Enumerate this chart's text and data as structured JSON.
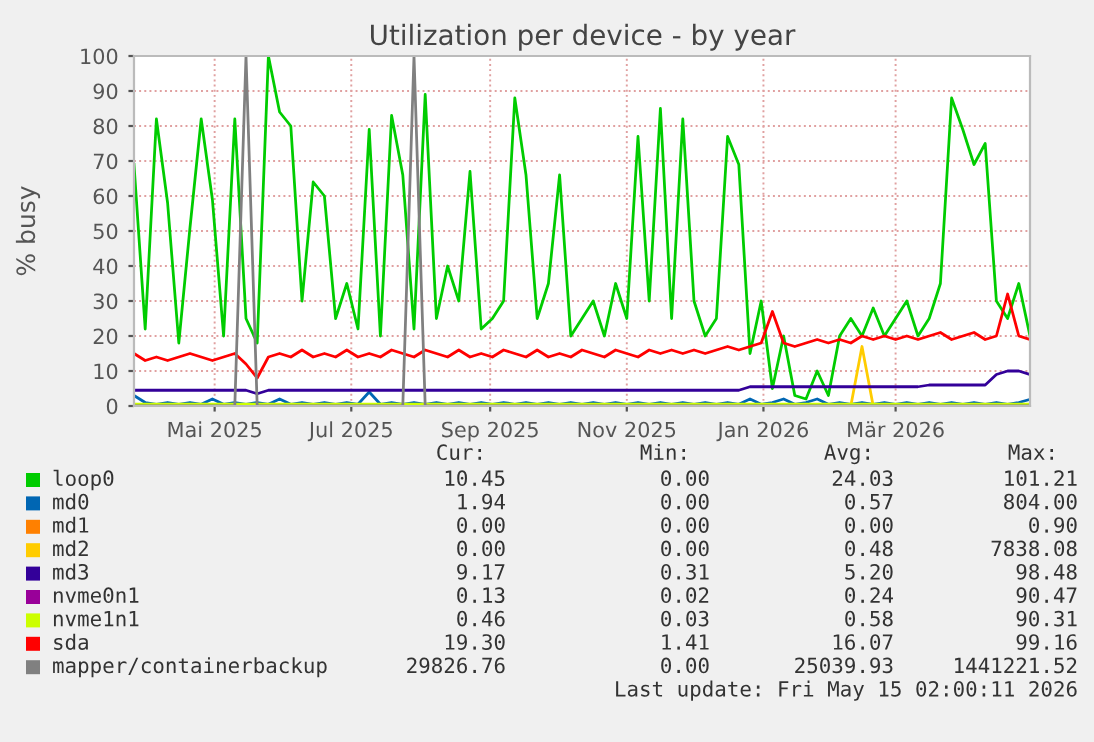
{
  "chart_data": {
    "type": "line",
    "title": "Utilization per device - by year",
    "ylabel": "% busy",
    "x": [
      "2025-04-10",
      "2025-04-15",
      "2025-04-20",
      "2025-04-25",
      "2025-04-30",
      "2025-05-05",
      "2025-05-10",
      "2025-05-15",
      "2025-05-20",
      "2025-05-25",
      "2025-05-30",
      "2025-06-04",
      "2025-06-09",
      "2025-06-14",
      "2025-06-19",
      "2025-06-24",
      "2025-06-29",
      "2025-07-04",
      "2025-07-09",
      "2025-07-14",
      "2025-07-19",
      "2025-07-24",
      "2025-07-29",
      "2025-08-03",
      "2025-08-08",
      "2025-08-13",
      "2025-08-18",
      "2025-08-23",
      "2025-08-28",
      "2025-09-02",
      "2025-09-07",
      "2025-09-12",
      "2025-09-17",
      "2025-09-22",
      "2025-09-27",
      "2025-10-02",
      "2025-10-07",
      "2025-10-12",
      "2025-10-17",
      "2025-10-22",
      "2025-10-27",
      "2025-11-01",
      "2025-11-06",
      "2025-11-11",
      "2025-11-16",
      "2025-11-21",
      "2025-11-26",
      "2025-12-01",
      "2025-12-06",
      "2025-12-11",
      "2025-12-16",
      "2025-12-21",
      "2025-12-26",
      "2025-12-31",
      "2026-01-05",
      "2026-01-10",
      "2026-01-15",
      "2026-01-20",
      "2026-01-25",
      "2026-01-30",
      "2026-02-04",
      "2026-02-09",
      "2026-02-14",
      "2026-02-19",
      "2026-02-24",
      "2026-03-01",
      "2026-03-06",
      "2026-03-11",
      "2026-03-16",
      "2026-03-21",
      "2026-03-26",
      "2026-03-31",
      "2026-04-05",
      "2026-04-10",
      "2026-04-15",
      "2026-04-20",
      "2026-04-25",
      "2026-04-30",
      "2026-05-05",
      "2026-05-10",
      "2026-05-15"
    ],
    "series": [
      {
        "name": "loop0",
        "color": "#00cc00",
        "values": [
          69,
          22,
          82,
          58,
          18,
          51,
          82,
          59,
          20,
          82,
          25,
          18,
          100,
          84,
          80,
          30,
          64,
          60,
          25,
          35,
          22,
          79,
          20,
          83,
          66,
          22,
          89,
          25,
          40,
          30,
          67,
          22,
          25,
          30,
          88,
          66,
          25,
          35,
          66,
          20,
          25,
          30,
          20,
          35,
          25,
          77,
          30,
          85,
          25,
          82,
          30,
          20,
          25,
          77,
          69,
          15,
          30,
          5,
          20,
          3,
          2,
          10,
          3,
          20,
          25,
          20,
          28,
          20,
          25,
          30,
          20,
          25,
          35,
          88,
          79,
          69,
          75,
          30,
          25,
          35,
          20
        ]
      },
      {
        "name": "md0",
        "color": "#0066b3",
        "values": [
          3,
          1,
          0.5,
          1,
          0.5,
          1,
          0.5,
          2,
          0.5,
          1,
          0.5,
          1,
          0.5,
          2,
          0.5,
          1,
          0.5,
          1,
          0.5,
          1,
          0.5,
          4,
          0.5,
          1,
          0.5,
          1,
          0.5,
          1,
          0.5,
          1,
          0.5,
          1,
          0.5,
          1,
          0.5,
          1,
          0.5,
          1,
          0.5,
          1,
          0.5,
          1,
          0.5,
          1,
          0.5,
          1,
          0.5,
          1,
          0.5,
          1,
          0.5,
          1,
          0.5,
          1,
          0.5,
          2,
          0.5,
          1,
          2,
          0.5,
          1,
          2,
          0.5,
          1,
          0.5,
          1,
          0.5,
          1,
          0.5,
          1,
          0.5,
          1,
          0.5,
          1,
          0.5,
          1,
          0.5,
          1,
          0.5,
          1,
          1.9
        ]
      },
      {
        "name": "md1",
        "color": "#ff8000",
        "values": [
          null,
          null,
          null,
          null,
          null,
          null,
          null,
          null,
          null,
          null,
          null,
          null,
          null,
          null,
          null,
          null,
          null,
          null,
          null,
          null,
          null,
          null,
          null,
          null,
          null,
          null,
          null,
          null,
          null,
          null,
          null,
          null,
          null,
          null,
          null,
          null,
          null,
          null,
          null,
          null,
          null,
          null,
          null,
          null,
          null,
          null,
          null,
          null,
          null,
          null,
          null,
          null,
          null,
          null,
          null,
          null,
          null,
          null,
          null,
          null,
          null,
          null,
          null,
          null,
          null,
          null,
          null,
          null,
          null,
          null,
          null,
          null,
          null,
          null,
          null,
          null,
          null,
          null,
          null,
          null,
          null
        ]
      },
      {
        "name": "md2",
        "color": "#ffcc00",
        "values": [
          null,
          null,
          null,
          null,
          null,
          null,
          null,
          null,
          null,
          null,
          null,
          null,
          null,
          null,
          null,
          null,
          null,
          null,
          null,
          null,
          null,
          null,
          null,
          null,
          null,
          null,
          null,
          null,
          null,
          null,
          null,
          null,
          null,
          null,
          null,
          null,
          null,
          null,
          null,
          null,
          null,
          null,
          null,
          null,
          null,
          null,
          null,
          null,
          null,
          null,
          null,
          null,
          null,
          null,
          null,
          null,
          null,
          null,
          null,
          null,
          null,
          null,
          null,
          null,
          0,
          17,
          0,
          null,
          null,
          null,
          null,
          null,
          null,
          null,
          null,
          null,
          null,
          null,
          null,
          null,
          null
        ]
      },
      {
        "name": "md3",
        "color": "#330099",
        "values": [
          4.5,
          4.5,
          4.5,
          4.5,
          4.5,
          4.5,
          4.5,
          4.5,
          4.5,
          4.5,
          4.5,
          3.5,
          4.5,
          4.5,
          4.5,
          4.5,
          4.5,
          4.5,
          4.5,
          4.5,
          4.5,
          4.5,
          4.5,
          4.5,
          4.5,
          4.5,
          4.5,
          4.5,
          4.5,
          4.5,
          4.5,
          4.5,
          4.5,
          4.5,
          4.5,
          4.5,
          4.5,
          4.5,
          4.5,
          4.5,
          4.5,
          4.5,
          4.5,
          4.5,
          4.5,
          4.5,
          4.5,
          4.5,
          4.5,
          4.5,
          4.5,
          4.5,
          4.5,
          4.5,
          4.5,
          5.5,
          5.5,
          5.5,
          5.5,
          5.5,
          5.5,
          5.5,
          5.5,
          5.5,
          5.5,
          5.5,
          5.5,
          5.5,
          5.5,
          5.5,
          5.5,
          6,
          6,
          6,
          6,
          6,
          6,
          9,
          10,
          10,
          9
        ]
      },
      {
        "name": "nvme0n1",
        "color": "#990099",
        "values": [
          null,
          null,
          null,
          null,
          null,
          null,
          null,
          null,
          null,
          null,
          null,
          null,
          null,
          null,
          null,
          null,
          null,
          null,
          null,
          null,
          null,
          null,
          null,
          null,
          null,
          null,
          null,
          null,
          null,
          null,
          null,
          null,
          null,
          null,
          null,
          null,
          null,
          null,
          null,
          null,
          null,
          null,
          null,
          null,
          null,
          null,
          null,
          null,
          null,
          null,
          null,
          null,
          null,
          null,
          null,
          null,
          null,
          null,
          null,
          null,
          null,
          null,
          null,
          null,
          null,
          null,
          null,
          null,
          null,
          null,
          null,
          null,
          null,
          null,
          null,
          null,
          null,
          null,
          null,
          null,
          null
        ]
      },
      {
        "name": "nvme1n1",
        "color": "#ccff00",
        "values": [
          0.5,
          0.5,
          0.5,
          0.5,
          0.5,
          0.5,
          0.5,
          0.5,
          0.5,
          0.5,
          0.5,
          0.5,
          0.5,
          0.5,
          0.5,
          0.5,
          0.5,
          0.5,
          0.5,
          0.5,
          0.5,
          0.5,
          0.5,
          0.5,
          0.5,
          0.5,
          0.5,
          0.5,
          0.5,
          0.5,
          0.5,
          0.5,
          0.5,
          0.5,
          0.5,
          0.5,
          0.5,
          0.5,
          0.5,
          0.5,
          0.5,
          0.5,
          0.5,
          0.5,
          0.5,
          0.5,
          0.5,
          0.5,
          0.5,
          0.5,
          0.5,
          0.5,
          0.5,
          0.5,
          0.5,
          0.5,
          0.5,
          0.5,
          0.5,
          0.5,
          0.5,
          0.5,
          0.5,
          0.5,
          0.5,
          0.5,
          0.5,
          0.5,
          0.5,
          0.5,
          0.5,
          0.5,
          0.5,
          0.5,
          0.5,
          0.5,
          0.5,
          0.5,
          0.5,
          0.5,
          0.5
        ]
      },
      {
        "name": "sda",
        "color": "#ff0000",
        "values": [
          15,
          13,
          14,
          13,
          14,
          15,
          14,
          13,
          14,
          15,
          12,
          8,
          14,
          15,
          14,
          16,
          14,
          15,
          14,
          16,
          14,
          15,
          14,
          16,
          15,
          14,
          16,
          15,
          14,
          16,
          14,
          15,
          14,
          16,
          15,
          14,
          16,
          14,
          15,
          14,
          16,
          15,
          14,
          16,
          15,
          14,
          16,
          15,
          16,
          15,
          16,
          15,
          16,
          17,
          16,
          17,
          18,
          27,
          18,
          17,
          18,
          19,
          18,
          19,
          18,
          20,
          19,
          20,
          19,
          20,
          19,
          20,
          21,
          19,
          20,
          21,
          19,
          20,
          32,
          20,
          19
        ]
      },
      {
        "name": "mapper/containerbackup",
        "color": "#808080",
        "values": [
          0,
          0,
          0,
          0,
          0,
          0,
          0,
          0,
          0,
          0,
          100,
          0,
          0,
          0,
          0,
          0,
          0,
          0,
          0,
          0,
          0,
          0,
          0,
          0,
          0,
          100,
          0,
          0,
          0,
          0,
          0,
          0,
          0,
          0,
          0,
          0,
          0,
          0,
          0,
          0,
          0,
          0,
          0,
          0,
          0,
          0,
          0,
          0,
          0,
          0,
          0,
          0,
          0,
          0,
          0,
          0,
          0,
          0,
          0,
          0,
          0,
          0,
          0,
          0,
          0,
          0,
          0,
          0,
          0,
          0,
          0,
          0,
          0,
          0,
          0,
          0,
          0,
          0,
          0,
          0,
          0
        ]
      }
    ],
    "xlim": [
      "2025-04-10",
      "2026-05-15"
    ],
    "xticks": [
      {
        "value": "2025-05-16",
        "label": "Mai 2025"
      },
      {
        "value": "2025-07-16",
        "label": "Jul 2025"
      },
      {
        "value": "2025-09-16",
        "label": "Sep 2025"
      },
      {
        "value": "2025-11-16",
        "label": "Nov 2025"
      },
      {
        "value": "2026-01-16",
        "label": "Jan 2026"
      },
      {
        "value": "2026-03-16",
        "label": "Mär 2026"
      }
    ],
    "ylim": [
      0,
      100
    ],
    "yticks": [
      0,
      10,
      20,
      30,
      40,
      50,
      60,
      70,
      80,
      90,
      100
    ],
    "grid": true,
    "legend": "bottom",
    "annotations": [
      "Cur:",
      "Min:",
      "Avg:",
      "Max:",
      "10.45",
      "0.00",
      "24.03",
      "101.21",
      "1.94",
      "0.00",
      "0.57",
      "804.00",
      "0.00",
      "0.00",
      "0.00",
      "0.90",
      "0.00",
      "0.00",
      "0.48",
      "7838.08",
      "9.17",
      "0.31",
      "5.20",
      "98.48",
      "0.13",
      "0.02",
      "0.24",
      "90.47",
      "0.46",
      "0.03",
      "0.58",
      "90.31",
      "19.30",
      "1.41",
      "16.07",
      "99.16",
      "29826.76",
      "0.00",
      "25039.93",
      "1441221.52",
      "Last update: Fri May 15 02:00:11 2026"
    ]
  }
}
